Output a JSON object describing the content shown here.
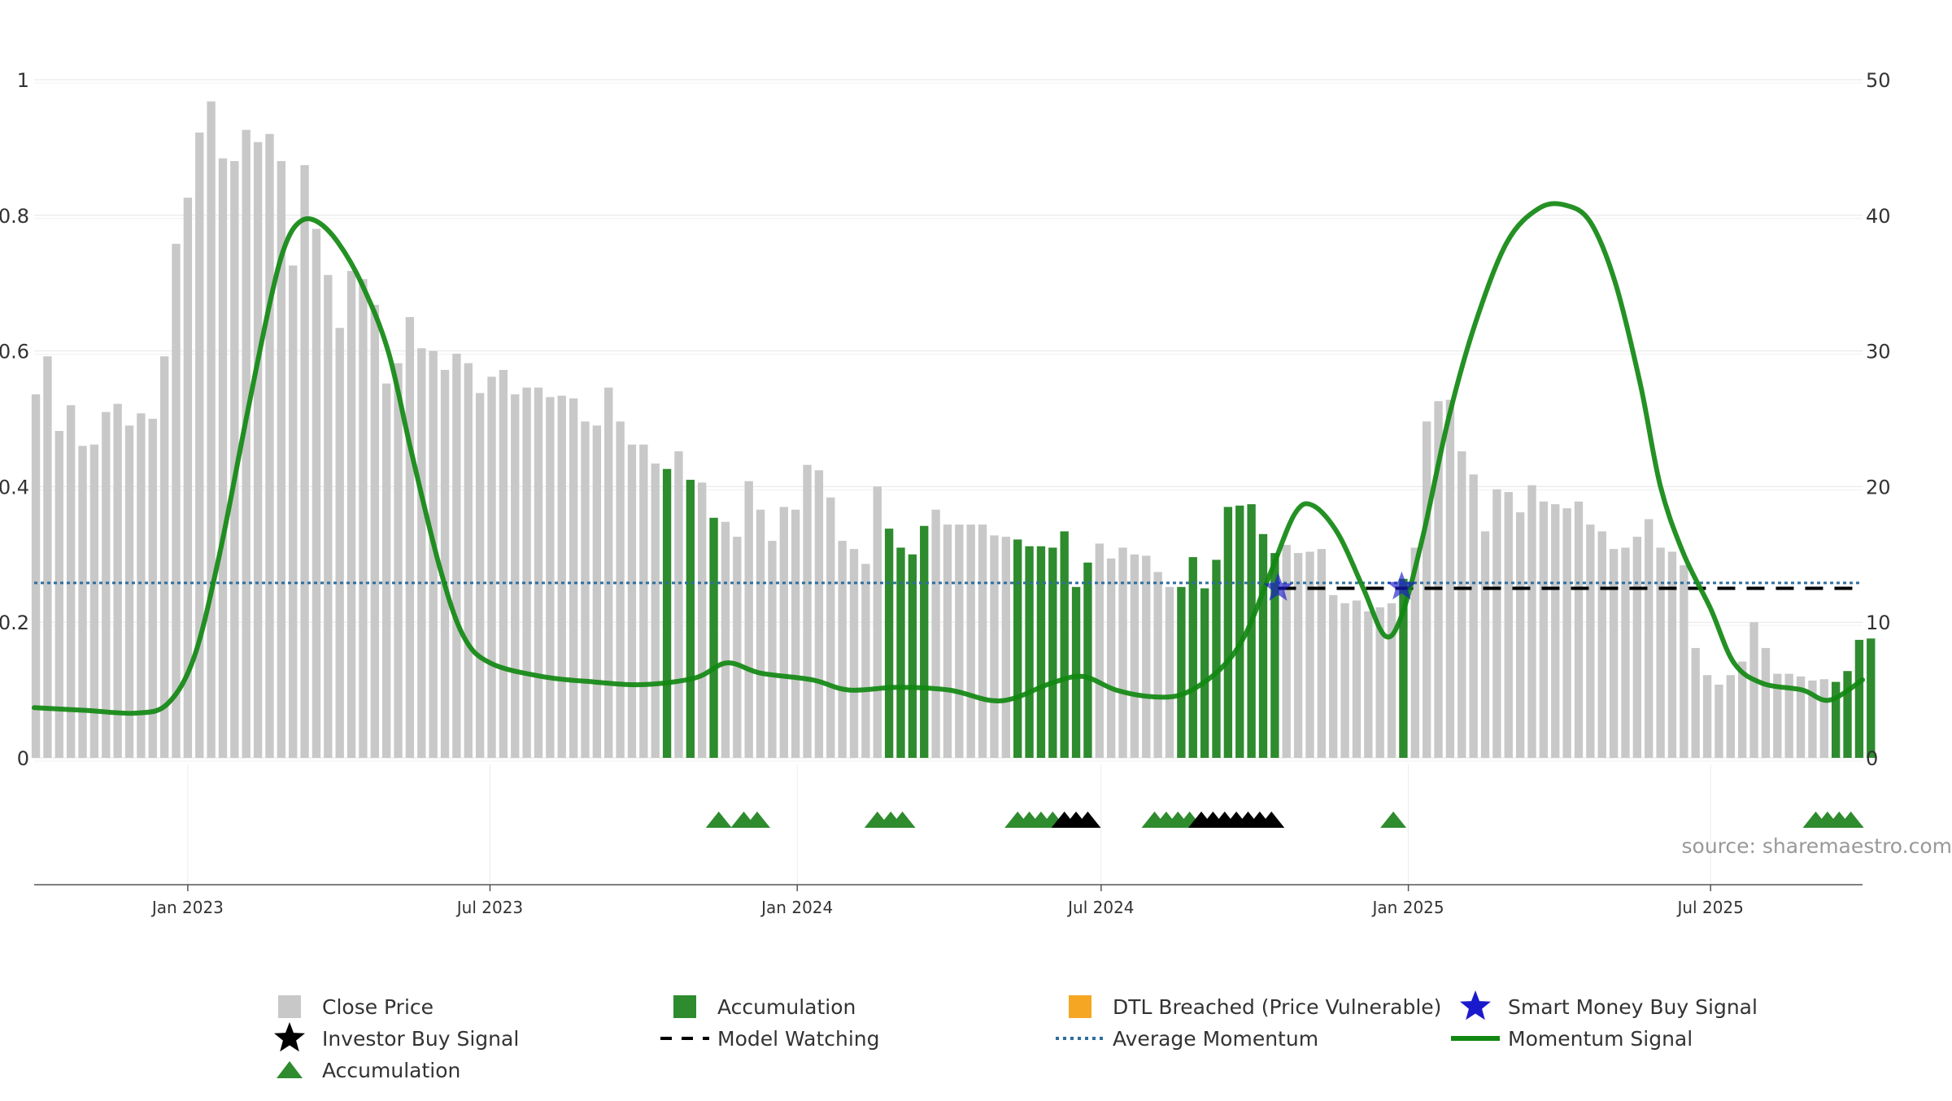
{
  "chart_data": {
    "type": "bar",
    "title": "",
    "x_axis": {
      "start": "2022-10-01",
      "end": "2025-09-30",
      "tick_labels": [
        "Jan 2023",
        "Jul 2023",
        "Jan 2024",
        "Jul 2024",
        "Jan 2025",
        "Jul 2025"
      ],
      "tick_dates": [
        "2023-01-01",
        "2023-07-01",
        "2024-01-01",
        "2024-07-01",
        "2025-01-01",
        "2025-07-01"
      ]
    },
    "y_left": {
      "range": [
        0,
        1
      ],
      "ticks": [
        0,
        0.2,
        0.4,
        0.6,
        0.8,
        1
      ],
      "tick_labels": [
        "0",
        "0.2",
        "0.4",
        "0.6",
        "0.8",
        "1"
      ]
    },
    "y_right": {
      "range": [
        0,
        50
      ],
      "ticks": [
        0,
        10,
        20,
        30,
        40,
        50
      ],
      "tick_labels": [
        "0",
        "10",
        "20",
        "30",
        "40",
        "50"
      ]
    },
    "grid": true,
    "legend_position": "bottom",
    "source": "source: sharemaestro.com",
    "colors": {
      "close_price": "#c8c8c8",
      "accumulation": "#2e8b2e",
      "momentum": "#118811",
      "average_momentum": "#2e6e9e",
      "model_watching": "#000000",
      "smart_money": "#1a1acc",
      "dtl_breached": "#f5a623",
      "investor_buy": "#000000",
      "grid": "#e6e6e6"
    },
    "close_price": {
      "start_week": "2022-10-02",
      "interval_days": 7,
      "values": [
        26.8,
        29.6,
        24.1,
        26.0,
        23.0,
        23.1,
        25.5,
        26.1,
        24.5,
        25.4,
        25.0,
        29.6,
        37.9,
        41.3,
        46.1,
        48.4,
        44.2,
        44.0,
        46.3,
        45.4,
        46.0,
        44.0,
        36.3,
        43.7,
        39.0,
        35.6,
        31.7,
        35.9,
        35.3,
        33.4,
        27.6,
        29.1,
        32.5,
        30.2,
        30.0,
        28.6,
        29.8,
        29.1,
        26.9,
        28.1,
        28.6,
        26.8,
        27.3,
        27.3,
        26.6,
        26.7,
        26.5,
        24.8,
        24.5,
        27.3,
        24.8,
        23.1,
        23.1,
        21.7,
        21.3,
        22.6,
        20.5,
        20.3,
        17.7,
        17.4,
        16.3,
        20.4,
        18.3,
        16.0,
        18.5,
        18.3,
        21.6,
        21.2,
        19.2,
        16.0,
        15.4,
        14.3,
        20.0,
        16.9,
        15.5,
        15.0,
        17.1,
        18.3,
        17.2,
        17.2,
        17.2,
        17.2,
        16.4,
        16.3,
        16.1,
        15.6,
        15.6,
        15.5,
        16.7,
        12.6,
        14.4,
        15.8,
        14.7,
        15.5,
        15.0,
        14.9,
        13.7,
        12.6,
        12.6,
        14.8,
        12.5,
        14.6,
        18.5,
        18.6,
        18.7,
        16.5,
        15.1,
        15.7,
        15.1,
        15.2,
        15.4,
        12.0,
        11.4,
        11.6,
        10.8,
        11.1,
        11.4,
        13.2,
        15.5,
        24.8,
        26.3,
        26.4,
        22.6,
        20.9,
        16.7,
        19.8,
        19.6,
        18.1,
        20.1,
        18.9,
        18.7,
        18.4,
        18.9,
        17.2,
        16.7,
        15.4,
        15.5,
        16.3,
        17.6,
        15.5,
        15.2,
        14.2,
        8.1,
        6.1,
        5.4,
        6.1,
        7.1,
        10.0,
        8.1,
        6.2,
        6.2,
        6.0,
        5.7,
        5.8,
        5.6,
        6.4,
        8.7,
        8.8
      ],
      "accumulation_indices": [
        54,
        56,
        58,
        73,
        74,
        75,
        76,
        84,
        85,
        86,
        87,
        88,
        89,
        90,
        98,
        99,
        100,
        101,
        102,
        103,
        104,
        105,
        106,
        117,
        154,
        155,
        156,
        157
      ]
    },
    "momentum": {
      "points": [
        [
          "2022-10-01",
          0.074
        ],
        [
          "2022-11-01",
          0.07
        ],
        [
          "2022-12-01",
          0.066
        ],
        [
          "2022-12-20",
          0.08
        ],
        [
          "2023-01-05",
          0.15
        ],
        [
          "2023-01-20",
          0.3
        ],
        [
          "2023-02-05",
          0.5
        ],
        [
          "2023-02-20",
          0.68
        ],
        [
          "2023-03-01",
          0.76
        ],
        [
          "2023-03-10",
          0.792
        ],
        [
          "2023-03-20",
          0.79
        ],
        [
          "2023-04-01",
          0.76
        ],
        [
          "2023-04-15",
          0.7
        ],
        [
          "2023-05-01",
          0.6
        ],
        [
          "2023-05-15",
          0.45
        ],
        [
          "2023-06-01",
          0.28
        ],
        [
          "2023-06-15",
          0.18
        ],
        [
          "2023-07-01",
          0.14
        ],
        [
          "2023-08-01",
          0.12
        ],
        [
          "2023-09-01",
          0.112
        ],
        [
          "2023-10-01",
          0.108
        ],
        [
          "2023-11-01",
          0.118
        ],
        [
          "2023-11-20",
          0.14
        ],
        [
          "2023-12-10",
          0.125
        ],
        [
          "2024-01-10",
          0.115
        ],
        [
          "2024-02-01",
          0.1
        ],
        [
          "2024-03-01",
          0.104
        ],
        [
          "2024-04-01",
          0.1
        ],
        [
          "2024-04-25",
          0.085
        ],
        [
          "2024-05-10",
          0.088
        ],
        [
          "2024-06-01",
          0.11
        ],
        [
          "2024-06-20",
          0.12
        ],
        [
          "2024-07-10",
          0.1
        ],
        [
          "2024-08-01",
          0.09
        ],
        [
          "2024-08-20",
          0.095
        ],
        [
          "2024-09-10",
          0.13
        ],
        [
          "2024-09-25",
          0.18
        ],
        [
          "2024-10-10",
          0.27
        ],
        [
          "2024-10-25",
          0.36
        ],
        [
          "2024-11-05",
          0.372
        ],
        [
          "2024-11-20",
          0.33
        ],
        [
          "2024-12-05",
          0.25
        ],
        [
          "2024-12-18",
          0.18
        ],
        [
          "2024-12-28",
          0.21
        ],
        [
          "2025-01-10",
          0.33
        ],
        [
          "2025-01-25",
          0.5
        ],
        [
          "2025-02-10",
          0.64
        ],
        [
          "2025-03-01",
          0.76
        ],
        [
          "2025-03-20",
          0.81
        ],
        [
          "2025-04-05",
          0.815
        ],
        [
          "2025-04-20",
          0.79
        ],
        [
          "2025-05-05",
          0.7
        ],
        [
          "2025-05-20",
          0.55
        ],
        [
          "2025-06-01",
          0.4
        ],
        [
          "2025-06-15",
          0.3
        ],
        [
          "2025-07-01",
          0.22
        ],
        [
          "2025-07-15",
          0.14
        ],
        [
          "2025-08-01",
          0.11
        ],
        [
          "2025-08-25",
          0.1
        ],
        [
          "2025-09-10",
          0.085
        ],
        [
          "2025-09-30",
          0.115
        ]
      ]
    },
    "average_momentum": 0.258,
    "model_watching": {
      "start": "2024-10-15",
      "end": "2025-09-30",
      "level": 0.25
    },
    "smart_money_signals": [
      [
        "2024-10-15",
        0.25
      ],
      [
        "2024-12-28",
        0.252
      ]
    ],
    "accumulation_triangles": [
      "2023-11-15",
      "2023-11-30",
      "2023-12-08",
      "2024-02-18",
      "2024-02-26",
      "2024-03-04",
      "2024-05-12",
      "2024-05-19",
      "2024-05-26",
      "2024-06-02",
      "2024-08-02",
      "2024-08-09",
      "2024-08-16",
      "2024-08-23",
      "2024-12-23",
      "2025-09-02",
      "2025-09-09",
      "2025-09-16",
      "2025-09-23"
    ],
    "investor_buy_triangles": [
      "2024-06-09",
      "2024-06-16",
      "2024-06-23",
      "2024-08-30",
      "2024-09-06",
      "2024-09-13",
      "2024-09-20",
      "2024-09-27",
      "2024-10-04",
      "2024-10-11"
    ],
    "legend": [
      {
        "label": "Close Price",
        "symbol": "square",
        "color_key": "close_price"
      },
      {
        "label": "Accumulation",
        "symbol": "square",
        "color_key": "accumulation"
      },
      {
        "label": "DTL Breached (Price Vulnerable)",
        "symbol": "square",
        "color_key": "dtl_breached"
      },
      {
        "label": "Smart Money Buy Signal",
        "symbol": "star",
        "color_key": "smart_money"
      },
      {
        "label": "Investor Buy Signal",
        "symbol": "star",
        "color_key": "investor_buy"
      },
      {
        "label": "Model Watching",
        "symbol": "dash",
        "color_key": "model_watching"
      },
      {
        "label": "Average Momentum",
        "symbol": "dot",
        "color_key": "average_momentum"
      },
      {
        "label": "Momentum Signal",
        "symbol": "line",
        "color_key": "momentum"
      },
      {
        "label": "Accumulation",
        "symbol": "triangle",
        "color_key": "accumulation"
      }
    ]
  }
}
